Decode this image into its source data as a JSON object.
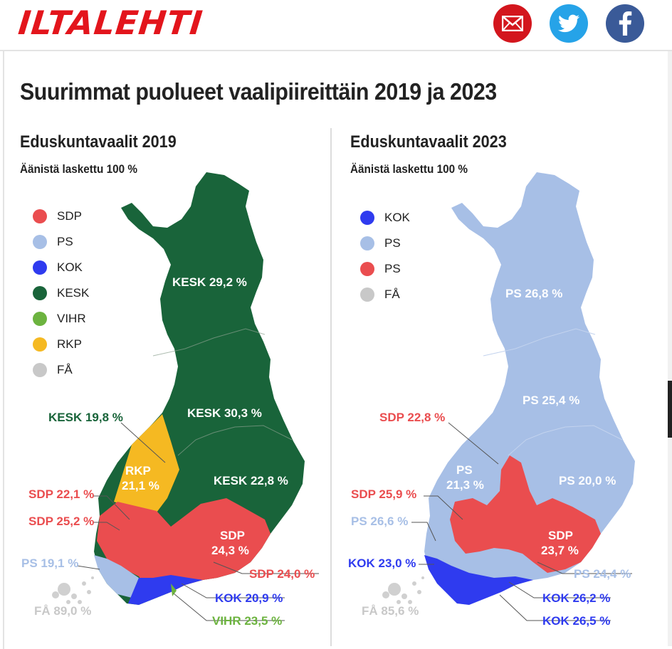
{
  "header": {
    "logo": "ILTALEHTI",
    "share": [
      "mail-icon",
      "twitter-icon",
      "facebook-icon"
    ]
  },
  "title": "Suurimmat puolueet vaalipiireittäin 2019 ja 2023",
  "colors": {
    "SDP": "#ea4d4f",
    "PS": "#a7bfe6",
    "KOK": "#2f3bef",
    "KESK": "#19643a",
    "VIHR": "#6cb33f",
    "RKP": "#f5b922",
    "FA": "#c8c8c8"
  },
  "panels": [
    {
      "title": "Eduskuntavaalit 2019",
      "subtitle": "Äänistä laskettu 100 %",
      "legend": [
        {
          "label": "SDP",
          "color": "#ea4d4f"
        },
        {
          "label": "PS",
          "color": "#a7bfe6"
        },
        {
          "label": "KOK",
          "color": "#2f3bef"
        },
        {
          "label": "KESK",
          "color": "#19643a"
        },
        {
          "label": "VIHR",
          "color": "#6cb33f"
        },
        {
          "label": "RKP",
          "color": "#f5b922"
        },
        {
          "label": "FÅ",
          "color": "#c8c8c8"
        }
      ],
      "labels": {
        "kesk_north": "KESK 29,2 %",
        "kesk_oulu": "KESK 30,3 %",
        "kesk_east": "KESK 22,8 %",
        "kesk_central": "KESK 19,8 %",
        "rkp_1": "RKP",
        "rkp_2": "21,1 %",
        "sdp_sw": "SDP 22,1 %",
        "sdp_tampere": "SDP 25,2 %",
        "sdp_se_1": "SDP",
        "sdp_se_2": "24,3 %",
        "sdp_kymi": "SDP 24,0 %",
        "ps_turku": "PS 19,1 %",
        "kok_helsinki": "KOK 20,9 %",
        "vihr_helsinki": "VIHR 23,5 %",
        "fa": "FÅ 89,0 %"
      }
    },
    {
      "title": "Eduskuntavaalit 2023",
      "subtitle": "Äänistä laskettu 100 %",
      "legend": [
        {
          "label": "KOK",
          "color": "#2f3bef"
        },
        {
          "label": "PS",
          "color": "#a7bfe6"
        },
        {
          "label": "PS",
          "color": "#ea4d4f"
        },
        {
          "label": "FÅ",
          "color": "#c8c8c8"
        }
      ],
      "labels": {
        "ps_north": "PS 26,8 %",
        "ps_oulu": "PS 25,4 %",
        "ps_east": "PS 20,0 %",
        "sdp_central": "SDP 22,8 %",
        "ps_vaasa_1": "PS",
        "ps_vaasa_2": "21,3 %",
        "sdp_tampere": "SDP 25,9 %",
        "ps_satakunta": "PS 26,6 %",
        "sdp_se_1": "SDP",
        "sdp_se_2": "23,7 %",
        "ps_kymi": "PS 24,4 %",
        "kok_turku": "KOK 23,0 %",
        "kok_uusimaa": "KOK 26,2 %",
        "kok_helsinki": "KOK 26,5 %",
        "fa": "FÅ 85,6 %"
      }
    }
  ]
}
